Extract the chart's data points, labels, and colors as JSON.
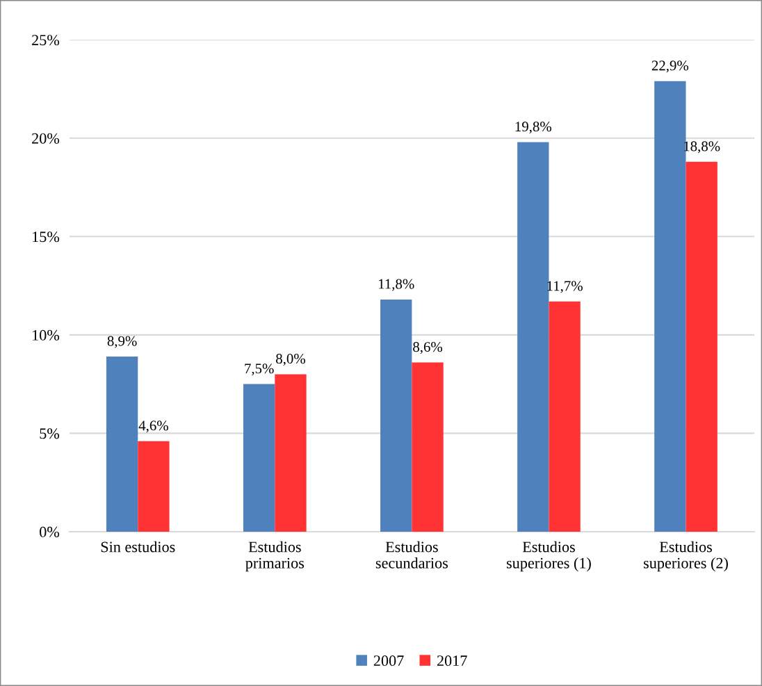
{
  "chart_data": {
    "type": "bar",
    "categories": [
      "Sin estudios",
      "Estudios\nprimarios",
      "Estudios\nsecundarios",
      "Estudios\nsuperiores (1)",
      "Estudios\nsuperiores (2)"
    ],
    "series": [
      {
        "name": "2007",
        "color": "#4f81bd",
        "values": [
          8.9,
          7.5,
          11.8,
          19.8,
          22.9
        ],
        "value_labels": [
          "8,9%",
          "7,5%",
          "11,8%",
          "19,8%",
          "22,9%"
        ]
      },
      {
        "name": "2017",
        "color": "#ff3333",
        "values": [
          4.6,
          8.0,
          8.6,
          11.7,
          18.8
        ],
        "value_labels": [
          "4,6%",
          "8,0%",
          "8,6%",
          "11,7%",
          "18,8%"
        ]
      }
    ],
    "ylim": [
      0,
      25
    ],
    "yticks": [
      {
        "value": 0,
        "label": "0%"
      },
      {
        "value": 5,
        "label": "5%"
      },
      {
        "value": 10,
        "label": "10%"
      },
      {
        "value": 15,
        "label": "15%"
      },
      {
        "value": 20,
        "label": "20%"
      },
      {
        "value": 25,
        "label": "25%"
      }
    ],
    "grid": "y",
    "legend": "bottom"
  }
}
